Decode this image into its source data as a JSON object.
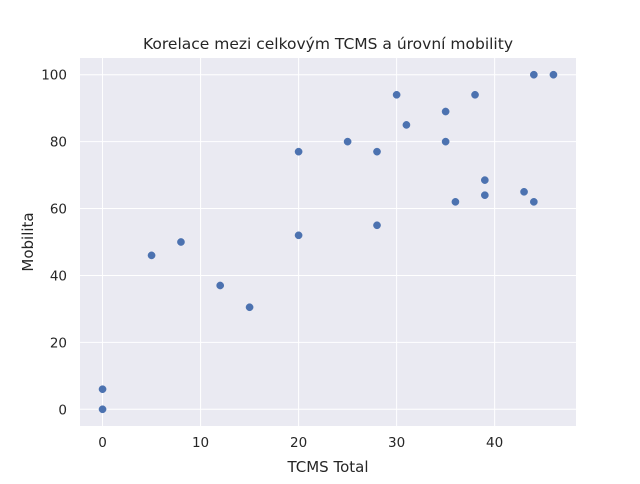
{
  "chart_data": {
    "type": "scatter",
    "title": "Korelace mezi celkovým TCMS a úrovní mobility",
    "xlabel": "TCMS Total",
    "ylabel": "Mobilita",
    "xlim": [
      -2.3,
      48.3
    ],
    "ylim": [
      -5,
      105
    ],
    "xticks": [
      0,
      10,
      20,
      30,
      40
    ],
    "yticks": [
      0,
      20,
      40,
      60,
      80,
      100
    ],
    "grid": true,
    "legend": "none",
    "colors": {
      "background": "#eaeaf2",
      "grid": "#ffffff",
      "point": "#4c72b0"
    },
    "points": [
      {
        "x": 0,
        "y": 6
      },
      {
        "x": 0,
        "y": 0
      },
      {
        "x": 5,
        "y": 46
      },
      {
        "x": 8,
        "y": 50
      },
      {
        "x": 12,
        "y": 37
      },
      {
        "x": 15,
        "y": 30.5
      },
      {
        "x": 20,
        "y": 77
      },
      {
        "x": 20,
        "y": 52
      },
      {
        "x": 25,
        "y": 80
      },
      {
        "x": 28,
        "y": 77
      },
      {
        "x": 28,
        "y": 55
      },
      {
        "x": 30,
        "y": 94
      },
      {
        "x": 31,
        "y": 85
      },
      {
        "x": 35,
        "y": 89
      },
      {
        "x": 35,
        "y": 80
      },
      {
        "x": 36,
        "y": 62
      },
      {
        "x": 38,
        "y": 94
      },
      {
        "x": 39,
        "y": 68.5
      },
      {
        "x": 39,
        "y": 64
      },
      {
        "x": 43,
        "y": 65
      },
      {
        "x": 44,
        "y": 100
      },
      {
        "x": 44,
        "y": 62
      },
      {
        "x": 46,
        "y": 100
      }
    ]
  }
}
